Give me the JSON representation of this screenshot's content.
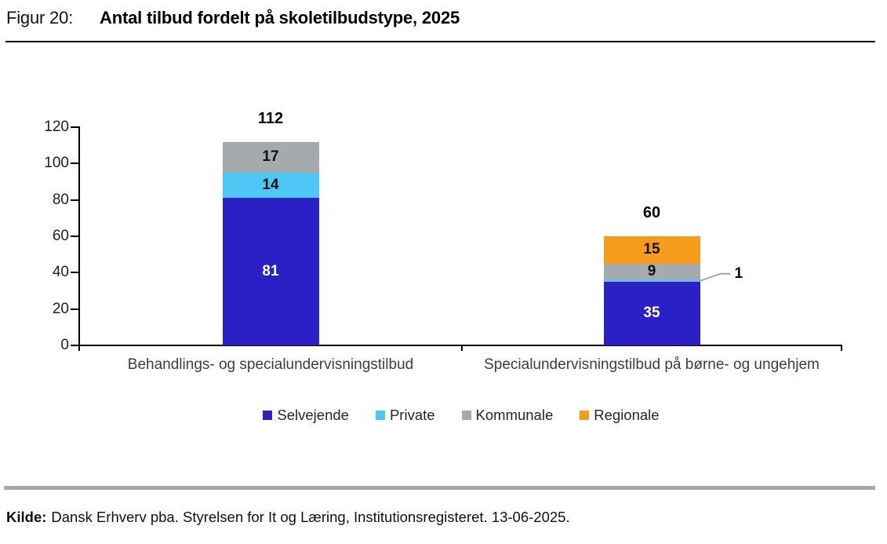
{
  "header": {
    "figure_label": "Figur 20:",
    "title": "Antal tilbud fordelt på skoletilbudstype, 2025"
  },
  "source": {
    "label": "Kilde:",
    "text": "Dansk Erhverv pba. Styrelsen for It og Læring, Institutionsregisteret. 13-06-2025."
  },
  "chart_data": {
    "type": "bar",
    "subtype": "stacked",
    "title": "Antal tilbud fordelt på skoletilbudstype, 2025",
    "categories": [
      "Behandlings- og specialundervisningstilbud",
      "Specialundervisningstilbud på børne- og ungehjem"
    ],
    "series": [
      {
        "name": "Selvejende",
        "color": "#2b1fc6",
        "label_color": "#ffffff",
        "values": [
          81,
          35
        ]
      },
      {
        "name": "Private",
        "color": "#4ec7f4",
        "label_color": "#111111",
        "values": [
          14,
          1
        ]
      },
      {
        "name": "Kommunale",
        "color": "#a5aaac",
        "label_color": "#111111",
        "values": [
          17,
          9
        ]
      },
      {
        "name": "Regionale",
        "color": "#f59d1a",
        "label_color": "#111111",
        "values": [
          0,
          15
        ]
      }
    ],
    "totals": [
      112,
      60
    ],
    "ylim": [
      0,
      120
    ],
    "yticks": [
      0,
      20,
      40,
      60,
      80,
      100,
      120
    ],
    "grid": false,
    "legend_position": "bottom",
    "annotations": [
      {
        "text": "1",
        "series": "Private",
        "category_index": 1,
        "leader_color": "#a6a6a6"
      }
    ]
  }
}
